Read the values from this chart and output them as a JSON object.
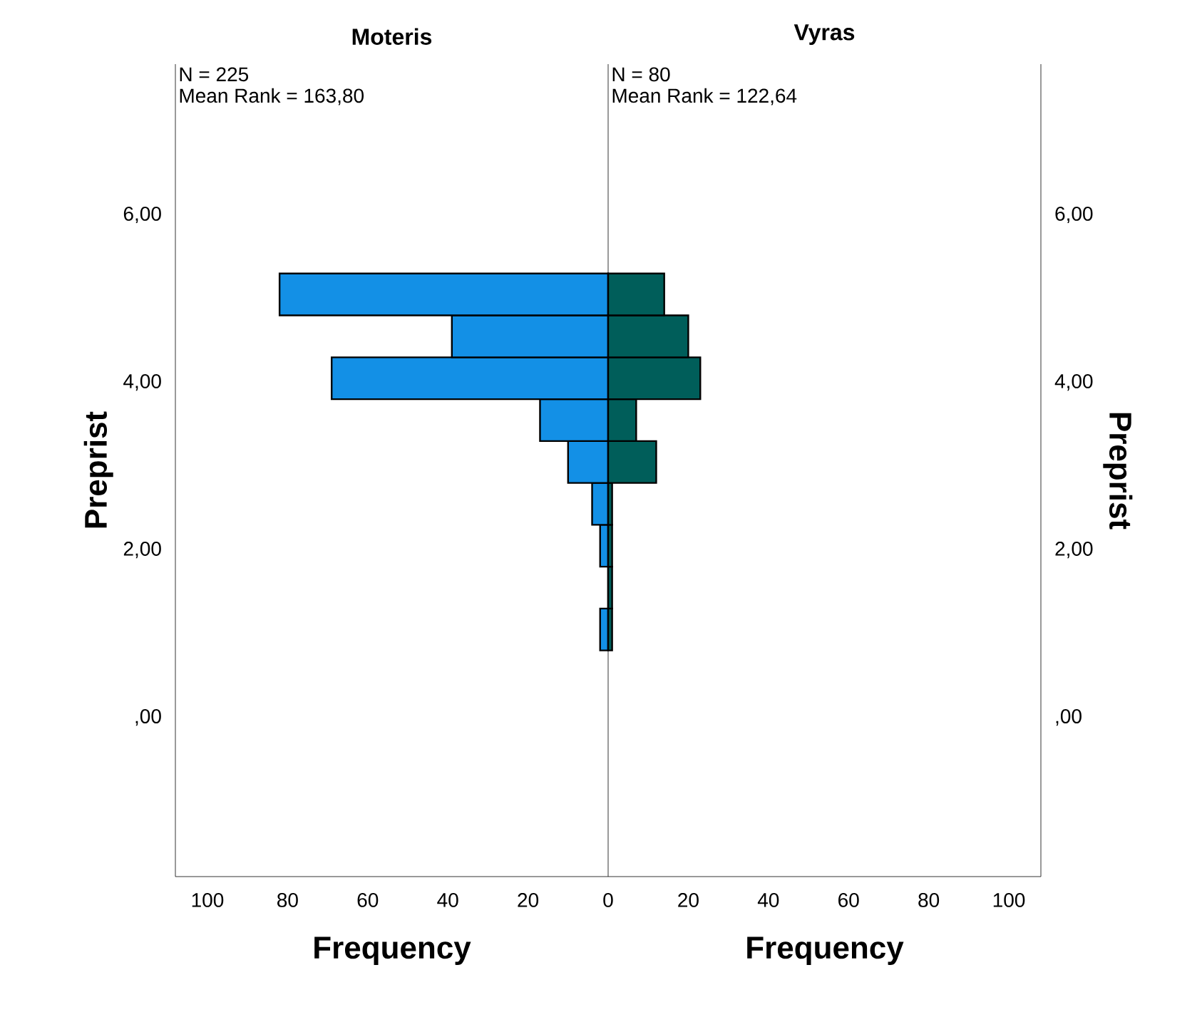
{
  "chart_data": [
    {
      "type": "histogram",
      "orientation": "horizontal",
      "title": "Moteris",
      "xlabel": "Frequency",
      "ylabel": "Preprist",
      "annotations": [
        "N = 225",
        "Mean Rank = 163,80"
      ],
      "bins": [
        0.8,
        1.3,
        1.8,
        2.3,
        2.8,
        3.3,
        3.8,
        4.3,
        4.8,
        5.3
      ],
      "values": [
        2,
        0,
        2,
        4,
        10,
        17,
        69,
        39,
        82
      ],
      "color": "#1390e6",
      "xlim": [
        108,
        0
      ],
      "ylim": [
        -1.9,
        7.8
      ],
      "xticks": [
        100,
        80,
        60,
        40,
        20,
        0
      ],
      "yticks": [
        {
          "value": 0,
          "label": ",00"
        },
        {
          "value": 2,
          "label": "2,00"
        },
        {
          "value": 4,
          "label": "4,00"
        },
        {
          "value": 6,
          "label": "6,00"
        }
      ],
      "grid": false
    },
    {
      "type": "histogram",
      "orientation": "horizontal",
      "title": "Vyras",
      "xlabel": "Frequency",
      "ylabel": "Preprist",
      "annotations": [
        "N = 80",
        "Mean Rank = 122,64"
      ],
      "bins": [
        0.8,
        1.3,
        1.8,
        2.3,
        2.8,
        3.3,
        3.8,
        4.3,
        4.8,
        5.3
      ],
      "values": [
        1,
        1,
        1,
        1,
        12,
        7,
        23,
        20,
        14
      ],
      "color": "#005e5a",
      "xlim": [
        0,
        108
      ],
      "ylim": [
        -1.9,
        7.8
      ],
      "xticks": [
        20,
        40,
        60,
        80,
        100
      ],
      "yticks": [
        {
          "value": 0,
          "label": ",00"
        },
        {
          "value": 2,
          "label": "2,00"
        },
        {
          "value": 4,
          "label": "4,00"
        },
        {
          "value": 6,
          "label": "6,00"
        }
      ],
      "grid": false
    }
  ]
}
